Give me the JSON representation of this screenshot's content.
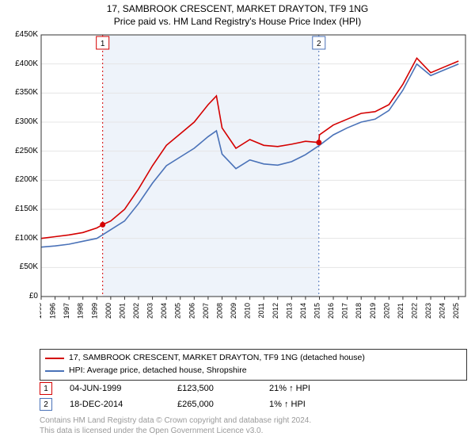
{
  "title_line1": "17, SAMBROOK CRESCENT, MARKET DRAYTON, TF9 1NG",
  "title_line2": "Price paid vs. HM Land Registry's House Price Index (HPI)",
  "chart": {
    "type": "line",
    "background_color": "#ffffff",
    "plot_border_color": "#333333",
    "grid_color": "#e5e5e5",
    "highlight_band_color": "#eef3fa",
    "highlight_band_x_start": 1999.42,
    "highlight_band_x_end": 2014.96,
    "xlim": [
      1995,
      2025.5
    ],
    "ylim": [
      0,
      450000
    ],
    "ytick_step": 50000,
    "yticks": [
      "£0",
      "£50K",
      "£100K",
      "£150K",
      "£200K",
      "£250K",
      "£300K",
      "£350K",
      "£400K",
      "£450K"
    ],
    "xticks": [
      "1995",
      "1996",
      "1997",
      "1998",
      "1999",
      "2000",
      "2001",
      "2002",
      "2003",
      "2004",
      "2005",
      "2006",
      "2007",
      "2008",
      "2009",
      "2010",
      "2011",
      "2012",
      "2013",
      "2014",
      "2015",
      "2016",
      "2017",
      "2018",
      "2019",
      "2020",
      "2021",
      "2022",
      "2023",
      "2024",
      "2025"
    ],
    "series": [
      {
        "name": "property",
        "label": "17, SAMBROOK CRESCENT, MARKET DRAYTON, TF9 1NG (detached house)",
        "color": "#d40000",
        "line_width": 1.6,
        "x": [
          1995,
          1996,
          1997,
          1998,
          1999,
          1999.42,
          2000,
          2001,
          2002,
          2003,
          2004,
          2005,
          2006,
          2007,
          2007.6,
          2008,
          2009,
          2010,
          2011,
          2012,
          2013,
          2014,
          2014.96,
          2015,
          2016,
          2017,
          2018,
          2019,
          2020,
          2021,
          2022,
          2023,
          2024,
          2025
        ],
        "y": [
          100000,
          103000,
          106000,
          110000,
          118000,
          123500,
          130000,
          150000,
          185000,
          225000,
          260000,
          280000,
          300000,
          330000,
          345000,
          290000,
          255000,
          270000,
          260000,
          258000,
          262000,
          267000,
          265000,
          278000,
          295000,
          305000,
          315000,
          318000,
          330000,
          365000,
          410000,
          385000,
          395000,
          405000
        ]
      },
      {
        "name": "hpi",
        "label": "HPI: Average price, detached house, Shropshire",
        "color": "#4a72b8",
        "line_width": 1.6,
        "x": [
          1995,
          1996,
          1997,
          1998,
          1999,
          2000,
          2001,
          2002,
          2003,
          2004,
          2005,
          2006,
          2007,
          2007.6,
          2008,
          2009,
          2010,
          2011,
          2012,
          2013,
          2014,
          2015,
          2016,
          2017,
          2018,
          2019,
          2020,
          2021,
          2022,
          2023,
          2024,
          2025
        ],
        "y": [
          85000,
          87000,
          90000,
          95000,
          100000,
          115000,
          130000,
          160000,
          195000,
          225000,
          240000,
          255000,
          275000,
          285000,
          245000,
          220000,
          235000,
          228000,
          226000,
          232000,
          244000,
          260000,
          278000,
          290000,
          300000,
          305000,
          320000,
          355000,
          400000,
          380000,
          390000,
          400000
        ]
      }
    ],
    "vlines": [
      {
        "x": 1999.42,
        "color": "#d40000",
        "dash": true
      },
      {
        "x": 2014.96,
        "color": "#4a72b8",
        "dash": true
      }
    ],
    "flag_markers": [
      {
        "n": "1",
        "x": 1999.42,
        "y_top_offset": 0,
        "border_color": "#d40000"
      },
      {
        "n": "2",
        "x": 2014.96,
        "y_top_offset": 0,
        "border_color": "#4a72b8"
      }
    ],
    "data_point": {
      "x": 1999.42,
      "y": 123500,
      "color": "#d40000"
    },
    "data_point2": {
      "x": 2014.96,
      "y": 265000,
      "color": "#d40000"
    }
  },
  "legend": {
    "series1_label": "17, SAMBROOK CRESCENT, MARKET DRAYTON, TF9 1NG (detached house)",
    "series1_color": "#d40000",
    "series2_label": "HPI: Average price, detached house, Shropshire",
    "series2_color": "#4a72b8"
  },
  "markers": [
    {
      "n": "1",
      "border_color": "#d40000",
      "date": "04-JUN-1999",
      "price": "£123,500",
      "pct": "21% ↑ HPI"
    },
    {
      "n": "2",
      "border_color": "#4a72b8",
      "date": "18-DEC-2014",
      "price": "£265,000",
      "pct": "1% ↑ HPI"
    }
  ],
  "attribution_line1": "Contains HM Land Registry data © Crown copyright and database right 2024.",
  "attribution_line2": "This data is licensed under the Open Government Licence v3.0."
}
